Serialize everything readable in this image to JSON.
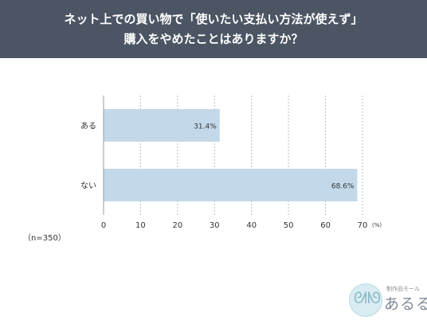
{
  "header": {
    "line1": "ネット上での買い物で「使いたい支払い方法が使えず」",
    "line2": "購入をやめたことはありますか？"
  },
  "sample_note": "（n=350）",
  "logo": {
    "small_text": "制作品モール",
    "brand_text": "あるる",
    "mascot_icon": "rabbit-mascot-icon"
  },
  "colors": {
    "header_bg": "#4b5563",
    "bar": "#c3d9ea",
    "axis": "#999999",
    "grid": "#bcbcbc"
  },
  "chart_data": {
    "type": "bar",
    "orientation": "horizontal",
    "categories": [
      "ある",
      "ない"
    ],
    "values": [
      31.4,
      68.6
    ],
    "value_labels": [
      "31.4%",
      "68.6%"
    ],
    "xlim": [
      0,
      70
    ],
    "xticks": [
      0,
      10,
      20,
      30,
      40,
      50,
      60,
      70
    ],
    "x_unit": "(%)",
    "grid": true,
    "title": "",
    "xlabel": "",
    "ylabel": ""
  }
}
